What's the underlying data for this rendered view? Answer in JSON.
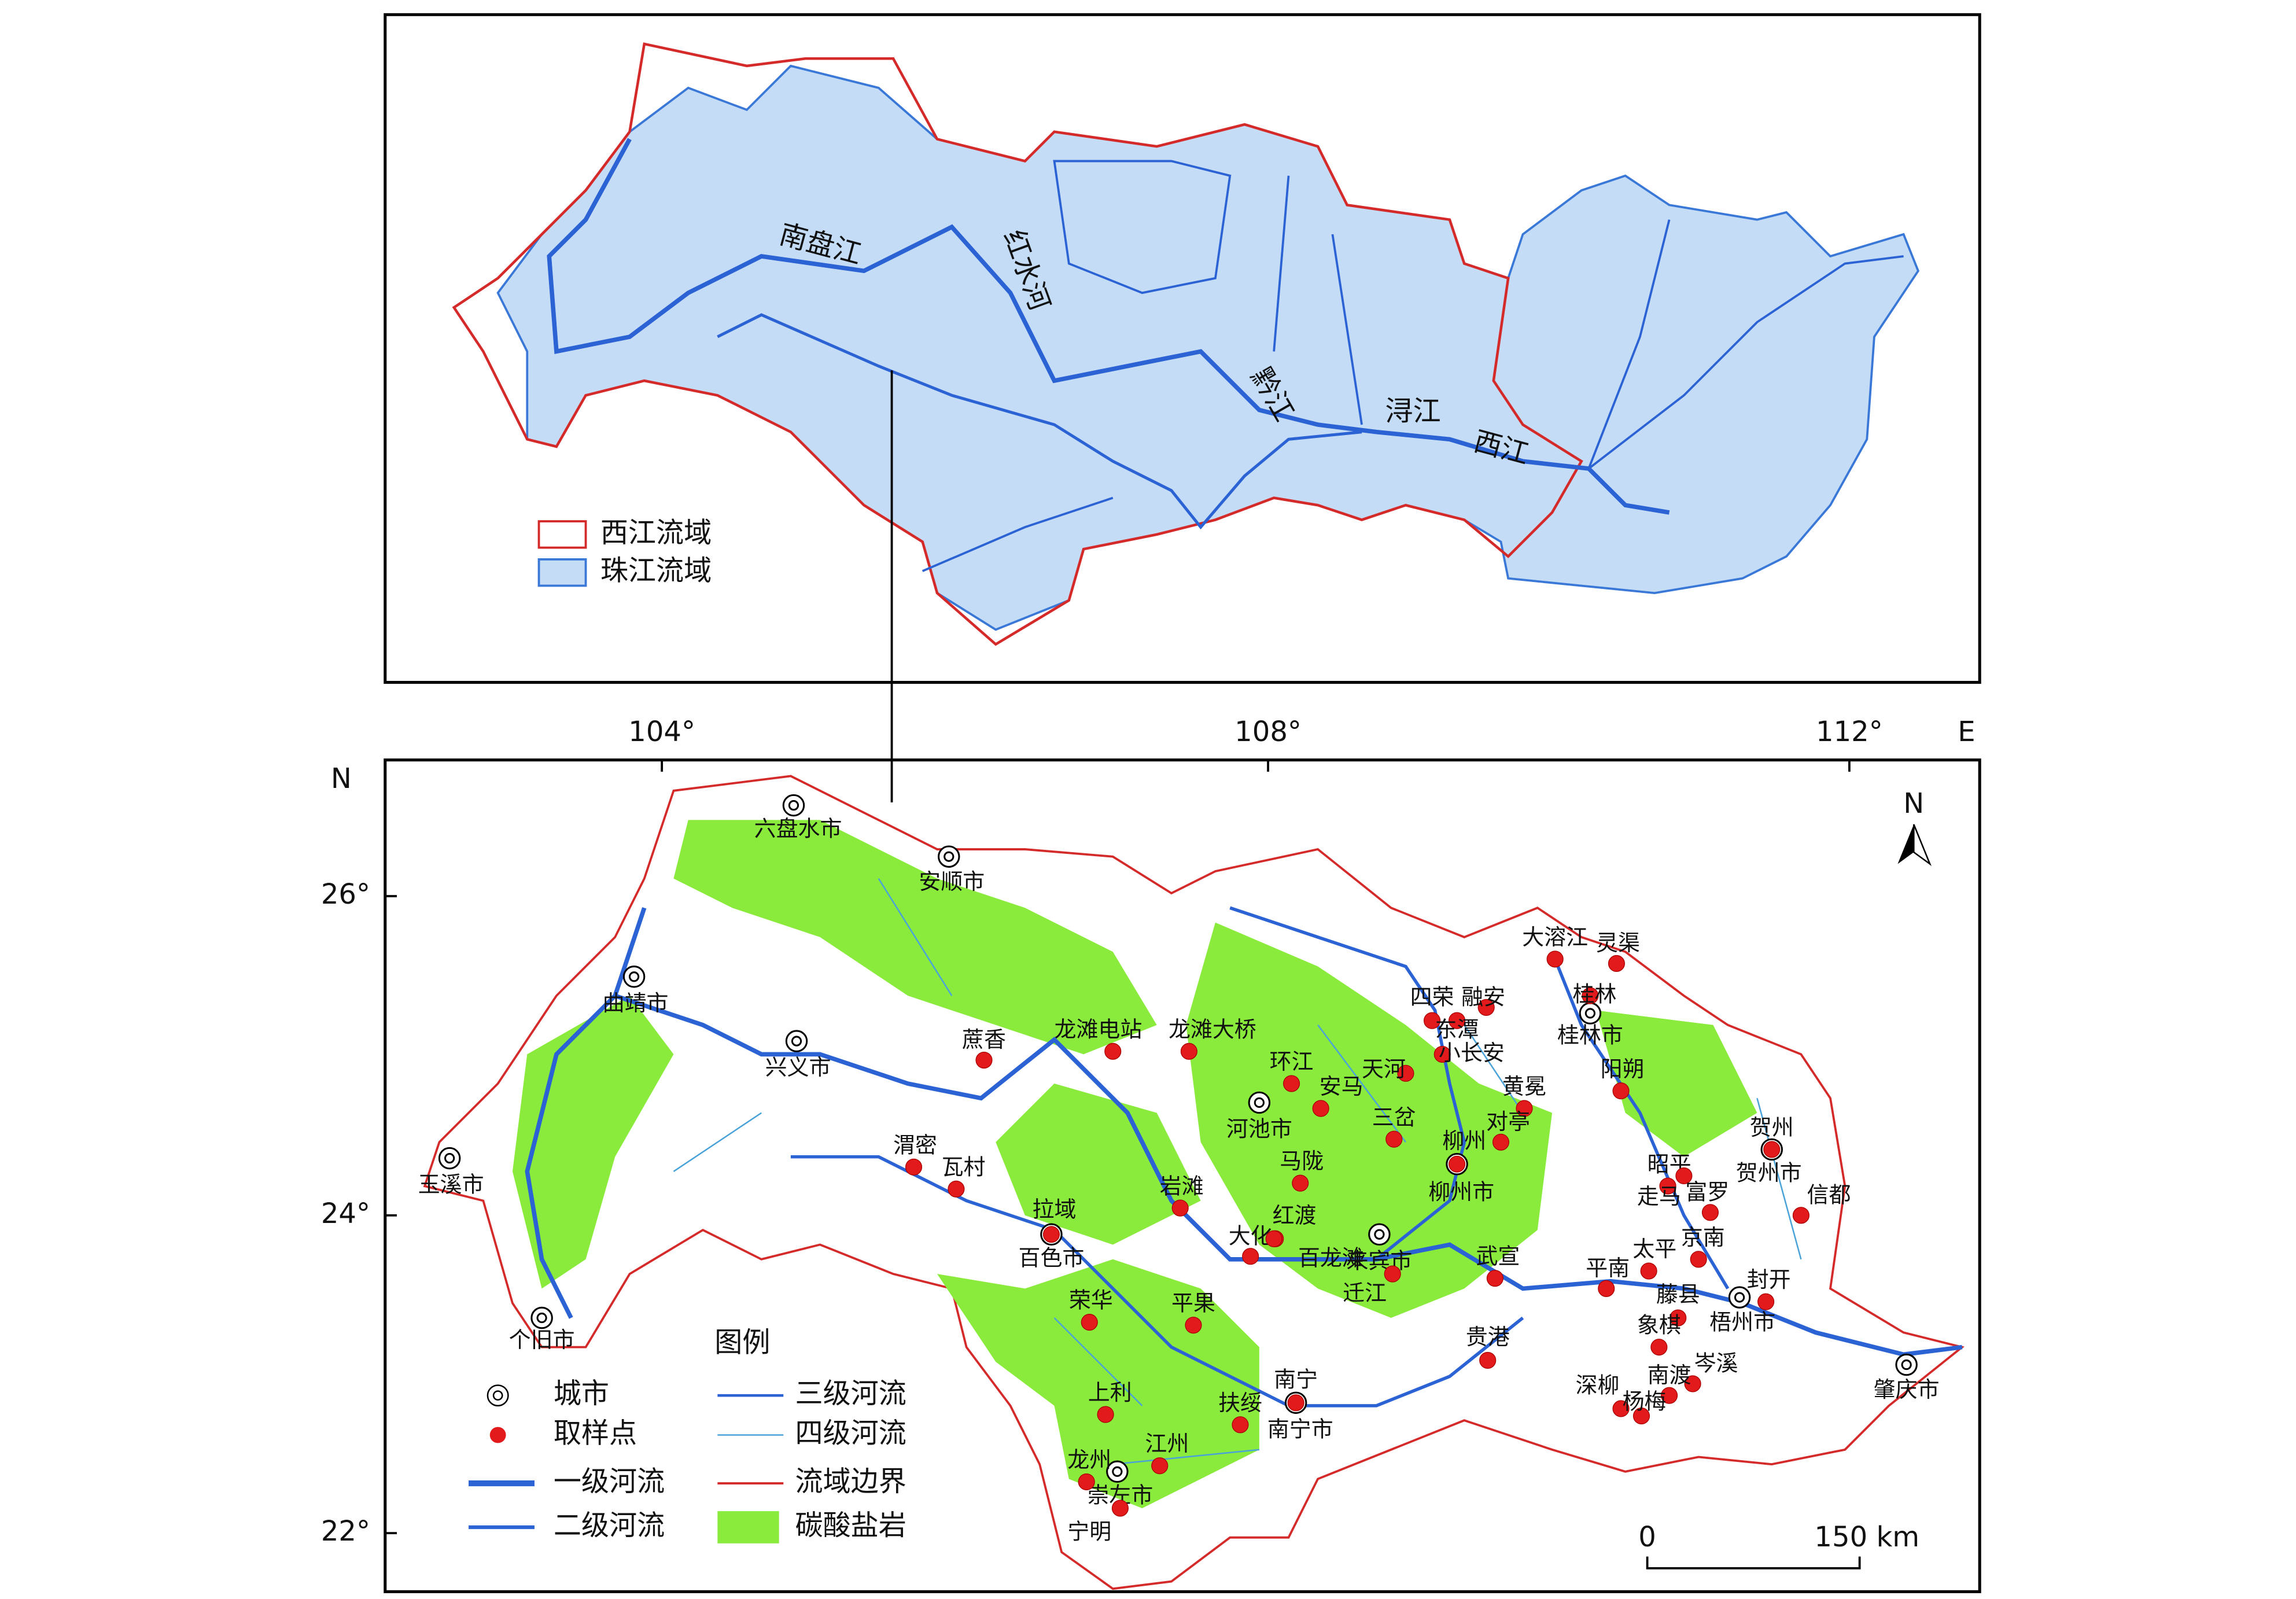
{
  "top_map": {
    "rivers": [
      "南盘江",
      "红水河",
      "黔江",
      "浔江",
      "西江"
    ],
    "legend": [
      "西江流域",
      "珠江流域"
    ]
  },
  "bottom_map": {
    "longitude_ticks": [
      "104°",
      "108°",
      "112°",
      "E"
    ],
    "latitude_ticks": [
      "N",
      "26°",
      "24°",
      "22°"
    ],
    "north_arrow": "N",
    "scale_bar": [
      "0",
      "150 km"
    ],
    "cities": [
      "六盘水市",
      "安顺市",
      "曲靖市",
      "兴义市",
      "玉溪市",
      "个旧市",
      "百色市",
      "河池市",
      "柳州市",
      "来宾市",
      "桂林市",
      "贺州市",
      "梧州市",
      "肇庆市",
      "南宁市",
      "崇左市"
    ],
    "sample_points": [
      "蔗香",
      "龙滩电站",
      "龙滩大桥",
      "环江",
      "安马",
      "天河",
      "四荣",
      "融安",
      "东潭",
      "小长安",
      "大溶江",
      "灵渠",
      "桂林",
      "阳朔",
      "黄冕",
      "对亭",
      "三岔",
      "马陇",
      "渭密",
      "瓦村",
      "拉域",
      "岩滩",
      "红渡",
      "大化",
      "百龙滩",
      "迁江",
      "武宣",
      "平南",
      "太平",
      "昭平",
      "走马",
      "富罗",
      "京南",
      "藤县",
      "封开",
      "信都",
      "贺州",
      "象棋",
      "岑溪",
      "南渡",
      "深柳",
      "杨梅",
      "贵港",
      "荣华",
      "平果",
      "南宁",
      "扶绥",
      "上利",
      "江州",
      "龙州",
      "宁明",
      "柳州"
    ],
    "legend": {
      "title": "图例",
      "items": [
        "城市",
        "取样点",
        "一级河流",
        "二级河流",
        "三级河流",
        "四级河流",
        "流域边界",
        "碳酸盐岩"
      ]
    }
  }
}
